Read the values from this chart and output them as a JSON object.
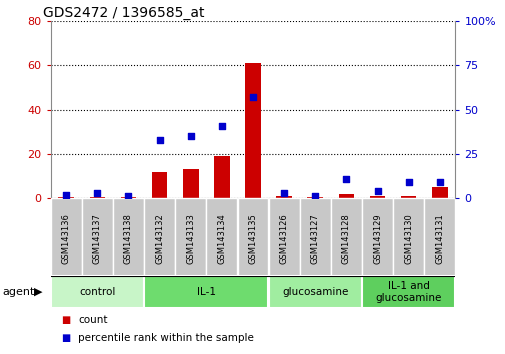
{
  "title": "GDS2472 / 1396585_at",
  "samples": [
    "GSM143136",
    "GSM143137",
    "GSM143138",
    "GSM143132",
    "GSM143133",
    "GSM143134",
    "GSM143135",
    "GSM143126",
    "GSM143127",
    "GSM143128",
    "GSM143129",
    "GSM143130",
    "GSM143131"
  ],
  "counts": [
    0.5,
    0.5,
    0.5,
    12,
    13,
    19,
    61,
    1,
    0.5,
    2,
    1,
    1,
    5
  ],
  "percentiles": [
    2,
    3,
    1,
    33,
    35,
    41,
    57,
    3,
    1,
    11,
    4,
    9,
    9
  ],
  "ylim_left": [
    0,
    80
  ],
  "ylim_right": [
    0,
    100
  ],
  "yticks_left": [
    0,
    20,
    40,
    60,
    80
  ],
  "yticks_right": [
    0,
    25,
    50,
    75,
    100
  ],
  "groups": [
    {
      "label": "control",
      "start": 0,
      "end": 3,
      "color": "#c8f5c8"
    },
    {
      "label": "IL-1",
      "start": 3,
      "end": 7,
      "color": "#6edc6e"
    },
    {
      "label": "glucosamine",
      "start": 7,
      "end": 10,
      "color": "#a0eda0"
    },
    {
      "label": "IL-1 and\nglucosamine",
      "start": 10,
      "end": 13,
      "color": "#5ecf5e"
    }
  ],
  "bar_color": "#cc0000",
  "dot_color": "#0000cc",
  "grid_color": "#000000",
  "tick_label_color_left": "#cc0000",
  "tick_label_color_right": "#0000cc",
  "xlabel_sample_bg": "#c8c8c8",
  "agent_label": "agent",
  "legend_count_label": "count",
  "legend_pct_label": "percentile rank within the sample"
}
